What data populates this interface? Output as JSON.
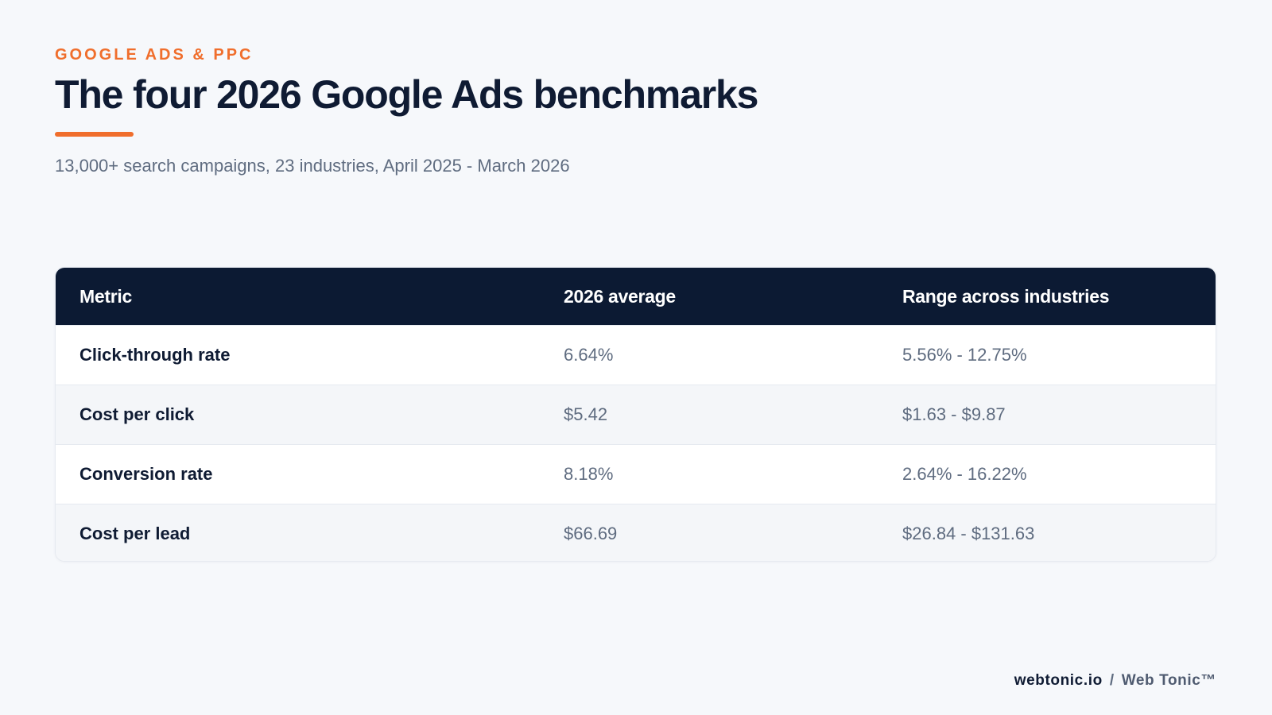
{
  "eyebrow": "GOOGLE ADS & PPC",
  "title": "The four 2026 Google Ads benchmarks",
  "subtitle": "13,000+ search campaigns, 23 industries, April 2025 - March 2026",
  "colors": {
    "accent": "#f06e2c",
    "navy": "#0c1a33",
    "muted_text": "#5f6c80",
    "background": "#f6f8fb"
  },
  "chart_data": {
    "type": "table",
    "columns": [
      "Metric",
      "2026 average",
      "Range across industries"
    ],
    "rows": [
      [
        "Click-through rate",
        "6.64%",
        "5.56% - 12.75%"
      ],
      [
        "Cost per click",
        "$5.42",
        "$1.63 - $9.87"
      ],
      [
        "Conversion rate",
        "8.18%",
        "2.64% - 16.22%"
      ],
      [
        "Cost per lead",
        "$66.69",
        "$26.84 - $131.63"
      ]
    ]
  },
  "footer": {
    "domain": "webtonic.io",
    "separator": "/",
    "brand": "Web Tonic™"
  }
}
